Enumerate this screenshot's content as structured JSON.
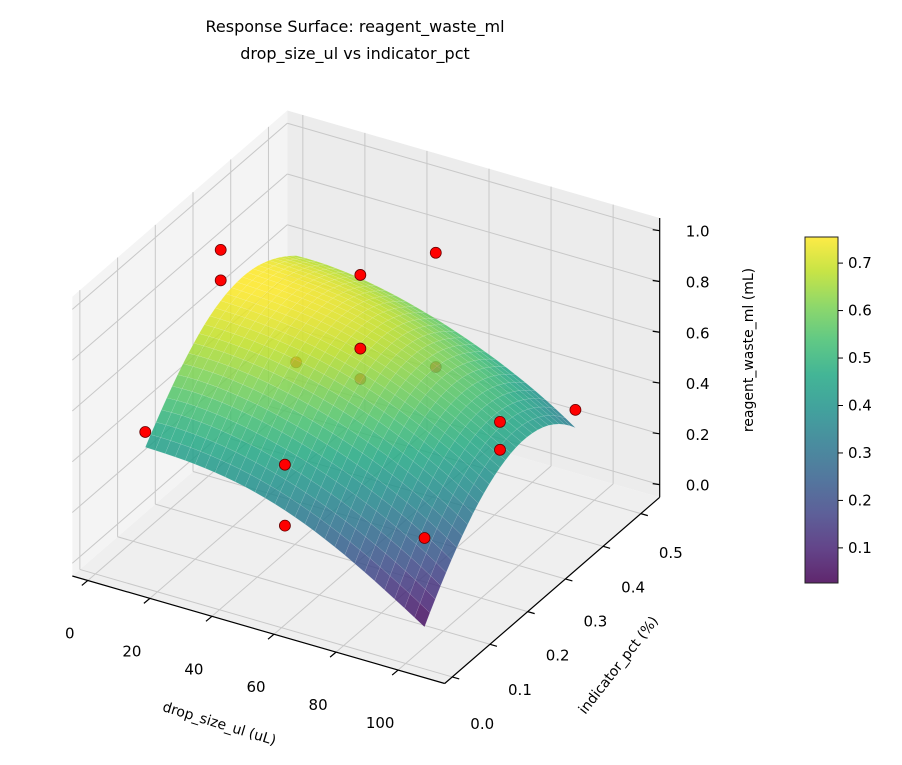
{
  "chart_data": {
    "type": "surface3d",
    "title_line1": "Response Surface: reagent_waste_ml",
    "title_line2": "drop_size_ul vs indicator_pct",
    "xlabel": "drop_size_ul (uL)",
    "ylabel": "indicator_pct (%)",
    "zlabel": "reagent_waste_ml (mL)",
    "xlim": [
      -5,
      115
    ],
    "ylim": [
      -0.02,
      0.55
    ],
    "zlim": [
      -0.05,
      1.05
    ],
    "x_ticks": [
      "0",
      "20",
      "40",
      "60",
      "80",
      "100"
    ],
    "y_ticks": [
      "0.0",
      "0.1",
      "0.2",
      "0.3",
      "0.4",
      "0.5"
    ],
    "z_ticks": [
      "0.0",
      "0.2",
      "0.4",
      "0.6",
      "0.8",
      "1.0"
    ],
    "view": {
      "elevation_deg": 30,
      "azimuth_deg": -60
    },
    "colormap": "viridis",
    "surface_alpha": 0.85,
    "surface": {
      "x": [
        10,
        32.5,
        55,
        77.5,
        100
      ],
      "y": [
        0.05,
        0.15,
        0.25,
        0.35,
        0.45
      ],
      "z": [
        [
          0.42,
          0.4,
          0.33,
          0.2,
          0.03
        ],
        [
          0.62,
          0.6,
          0.53,
          0.42,
          0.26
        ],
        [
          0.74,
          0.72,
          0.66,
          0.55,
          0.4
        ],
        [
          0.75,
          0.73,
          0.67,
          0.56,
          0.42
        ],
        [
          0.66,
          0.64,
          0.57,
          0.46,
          0.3
        ]
      ]
    },
    "points": [
      {
        "x": 10,
        "y": 0.05,
        "z": 0.48
      },
      {
        "x": 10,
        "y": 0.25,
        "z": 0.94
      },
      {
        "x": 10,
        "y": 0.25,
        "z": 0.82
      },
      {
        "x": 10,
        "y": 0.45,
        "z": 0.24
      },
      {
        "x": 55,
        "y": 0.05,
        "z": 0.51
      },
      {
        "x": 55,
        "y": 0.05,
        "z": 0.27
      },
      {
        "x": 55,
        "y": 0.25,
        "z": 1.0
      },
      {
        "x": 55,
        "y": 0.25,
        "z": 0.71
      },
      {
        "x": 55,
        "y": 0.25,
        "z": 0.59
      },
      {
        "x": 55,
        "y": 0.45,
        "z": 0.38
      },
      {
        "x": 55,
        "y": 0.45,
        "z": 0.83
      },
      {
        "x": 100,
        "y": 0.05,
        "z": 0.38
      },
      {
        "x": 100,
        "y": 0.25,
        "z": 0.58
      },
      {
        "x": 100,
        "y": 0.25,
        "z": 0.47
      },
      {
        "x": 100,
        "y": 0.45,
        "z": 0.37
      }
    ],
    "point_color": "#ff0000",
    "colorbar": {
      "clim": [
        0.026,
        0.755
      ],
      "ticks": [
        "0.1",
        "0.2",
        "0.3",
        "0.4",
        "0.5",
        "0.6",
        "0.7"
      ]
    },
    "grid": true
  }
}
